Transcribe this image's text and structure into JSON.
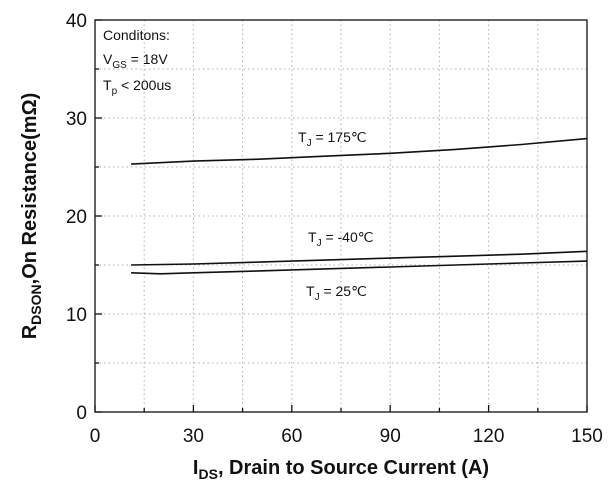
{
  "chart_data": {
    "type": "line",
    "xlabel": {
      "main": "I",
      "sub": "DS",
      "rest": ", Drain to Source Current  (A)"
    },
    "ylabel": {
      "main": "R",
      "sub": "DSON",
      "rest": ",On Resistance(mΩ)"
    },
    "xlim": [
      0,
      150
    ],
    "ylim": [
      0,
      40
    ],
    "xticks": [
      0,
      30,
      60,
      90,
      120,
      150
    ],
    "yticks": [
      0,
      10,
      20,
      30,
      40
    ],
    "grid": true,
    "conditions": {
      "title": "Conditons:",
      "line1": {
        "main": "V",
        "sub": "GS",
        "rest": " = 18V"
      },
      "line2": {
        "main": "T",
        "sub": "p",
        "rest": " < 200us"
      }
    },
    "series": [
      {
        "label": {
          "main": "T",
          "sub": "J",
          "rest": " = 175℃"
        },
        "x": [
          11,
          30,
          50,
          70,
          90,
          110,
          130,
          150
        ],
        "y": [
          25.3,
          25.6,
          25.8,
          26.1,
          26.4,
          26.8,
          27.3,
          27.9
        ]
      },
      {
        "label": {
          "main": "T",
          "sub": "J",
          "rest": " = -40℃"
        },
        "x": [
          11,
          30,
          50,
          70,
          90,
          110,
          130,
          150
        ],
        "y": [
          15.0,
          15.1,
          15.3,
          15.5,
          15.7,
          15.9,
          16.1,
          16.4
        ]
      },
      {
        "label": {
          "main": "T",
          "sub": "J",
          "rest": " = 25℃"
        },
        "x": [
          11,
          20,
          30,
          50,
          70,
          90,
          110,
          130,
          150
        ],
        "y": [
          14.2,
          14.1,
          14.2,
          14.4,
          14.6,
          14.8,
          15.0,
          15.2,
          15.4
        ]
      }
    ]
  }
}
